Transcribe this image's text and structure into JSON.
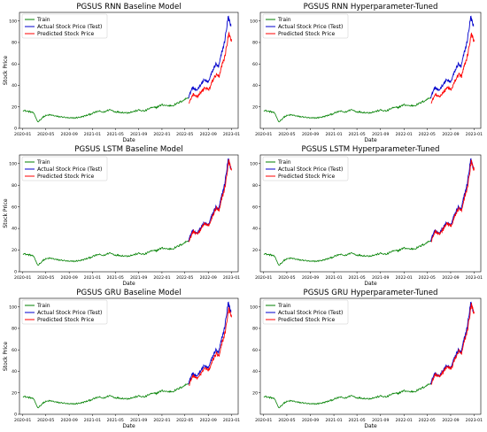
{
  "colors": {
    "train": "#008000",
    "actual": "#0000cc",
    "predicted": "#ff0000"
  },
  "chart_data": [
    {
      "type": "line",
      "title": "PGSUS RNN Baseline Model",
      "xlabel": "Date",
      "ylabel": "Stock Price",
      "xticks": [
        "2020-01",
        "2020-05",
        "2020-09",
        "2021-01",
        "2021-05",
        "2021-09",
        "2022-01",
        "2022-05",
        "2022-09",
        "2023-01"
      ],
      "yticks": [
        0,
        20,
        40,
        60,
        80,
        100
      ],
      "ylim": [
        0,
        108
      ],
      "legend": [
        "Train",
        "Actual Stock Price (Test)",
        "Predicted Stock Price"
      ],
      "legend_position": "top-left",
      "pred_bias": "under"
    },
    {
      "type": "line",
      "title": "PGSUS RNN Hyperparameter-Tuned",
      "xlabel": "Date",
      "ylabel": "",
      "xticks": [
        "2020-01",
        "2020-05",
        "2020-09",
        "2021-01",
        "2021-05",
        "2021-09",
        "2022-01",
        "2022-05",
        "2022-09",
        "2023-01"
      ],
      "yticks": [
        20,
        40,
        60,
        80,
        100
      ],
      "ylim": [
        0,
        108
      ],
      "legend": [
        "Train",
        "Actual Stock Price (Test)",
        "Predicted Stock Price"
      ],
      "legend_position": "top-left",
      "pred_bias": "under"
    },
    {
      "type": "line",
      "title": "PGSUS LSTM Baseline Model",
      "xlabel": "Date",
      "ylabel": "Stock Price",
      "xticks": [
        "2020-01",
        "2020-05",
        "2020-09",
        "2021-01",
        "2021-05",
        "2021-09",
        "2022-01",
        "2022-05",
        "2022-09",
        "2023-01"
      ],
      "yticks": [
        0,
        20,
        40,
        60,
        80,
        100
      ],
      "ylim": [
        0,
        108
      ],
      "legend": [
        "Train",
        "Actual Stock Price (Test)",
        "Predicted Stock Price"
      ],
      "legend_position": "top-left",
      "pred_bias": "close"
    },
    {
      "type": "line",
      "title": "PGSUS LSTM Hyperparameter-Tuned",
      "xlabel": "Date",
      "ylabel": "",
      "xticks": [
        "2020-01",
        "2020-05",
        "2020-09",
        "2021-01",
        "2021-05",
        "2021-09",
        "2022-01",
        "2022-05",
        "2022-09",
        "2023-01"
      ],
      "yticks": [
        20,
        40,
        60,
        80,
        100
      ],
      "ylim": [
        0,
        108
      ],
      "legend": [
        "Train",
        "Actual Stock Price (Test)",
        "Predicted Stock Price"
      ],
      "legend_position": "top-left",
      "pred_bias": "close"
    },
    {
      "type": "line",
      "title": "PGSUS GRU Baseline Model",
      "xlabel": "Date",
      "ylabel": "Stock Price",
      "xticks": [
        "2020-01",
        "2020-05",
        "2020-09",
        "2021-01",
        "2021-05",
        "2021-09",
        "2022-01",
        "2022-05",
        "2022-09",
        "2023-01"
      ],
      "yticks": [
        0,
        20,
        40,
        60,
        80,
        100
      ],
      "ylim": [
        0,
        108
      ],
      "legend": [
        "Train",
        "Actual Stock Price (Test)",
        "Predicted Stock Price"
      ],
      "legend_position": "top-left",
      "pred_bias": "slight"
    },
    {
      "type": "line",
      "title": "PGSUS GRU Hyperparameter-Tuned",
      "xlabel": "Date",
      "ylabel": "",
      "xticks": [
        "2020-01",
        "2020-05",
        "2020-09",
        "2021-01",
        "2021-05",
        "2021-09",
        "2022-01",
        "2022-05",
        "2022-09",
        "2023-01"
      ],
      "yticks": [
        20,
        40,
        60,
        80,
        100
      ],
      "ylim": [
        0,
        108
      ],
      "legend": [
        "Train",
        "Actual Stock Price (Test)",
        "Predicted Stock Price"
      ],
      "legend_position": "top-left",
      "pred_bias": "close"
    }
  ],
  "series_data": {
    "train": {
      "dates": [
        "2020-01-02",
        "2020-01-20",
        "2020-02-10",
        "2020-02-25",
        "2020-03-10",
        "2020-03-20",
        "2020-04-05",
        "2020-04-20",
        "2020-05-05",
        "2020-05-20",
        "2020-06-10",
        "2020-07-01",
        "2020-08-01",
        "2020-09-01",
        "2020-10-01",
        "2020-11-01",
        "2020-12-01",
        "2021-01-01",
        "2021-02-01",
        "2021-03-01",
        "2021-04-01",
        "2021-05-01",
        "2021-06-01",
        "2021-07-01",
        "2021-08-01",
        "2021-09-01",
        "2021-10-01",
        "2021-11-01",
        "2021-12-01",
        "2022-01-01",
        "2022-02-01",
        "2022-03-01",
        "2022-04-01",
        "2022-05-01",
        "2022-05-20"
      ],
      "values": [
        17,
        16,
        15.5,
        14.5,
        10,
        6,
        8.5,
        11,
        12,
        12.5,
        12,
        11,
        10.5,
        9.5,
        9.8,
        10.5,
        12,
        14,
        16,
        15,
        17.5,
        15.5,
        15,
        14.5,
        15.5,
        17,
        16,
        19,
        19.5,
        22,
        21,
        21.5,
        24,
        27,
        29
      ]
    },
    "actual": {
      "dates": [
        "2022-05-20",
        "2022-06-10",
        "2022-07-01",
        "2022-07-20",
        "2022-08-10",
        "2022-09-01",
        "2022-09-20",
        "2022-10-10",
        "2022-10-25",
        "2022-11-10",
        "2022-11-25",
        "2022-12-05",
        "2022-12-15",
        "2022-12-22",
        "2022-12-29"
      ],
      "values": [
        29,
        38,
        35,
        40,
        45,
        43,
        52,
        60,
        57,
        70,
        80,
        92,
        104,
        99,
        95
      ]
    }
  }
}
